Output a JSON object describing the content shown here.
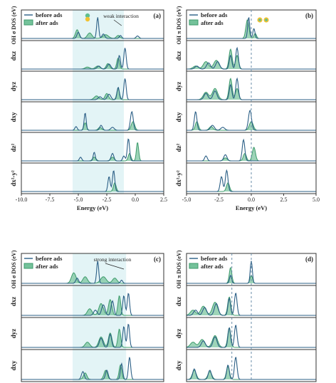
{
  "colors": {
    "before": "#2b5f86",
    "after": "#3e9b6c",
    "after_fill": "#74c29a",
    "shade": "#e3f4f6",
    "frame": "#333333",
    "dash": "#6a8ea8"
  },
  "legend": {
    "before": "before ads",
    "after": "after ads"
  },
  "panels": [
    {
      "id": "a",
      "tag": "(a)",
      "ylabel_top": "OH σ DOS (eV)",
      "annotation": "weak interaction",
      "annotation_icon": "orbital-icon",
      "xaxis": {
        "min": -10,
        "max": 2.5,
        "ticks": [
          "-10.0",
          "-7.5",
          "-5.0",
          "-2.5",
          "0.0",
          "2.5"
        ],
        "label": "Energy (eV)"
      },
      "shade": [
        -5.5,
        -1.0
      ],
      "dashed": [],
      "rows": [
        {
          "label": "",
          "before": [
            [
              -3.3,
              0.85,
              0.09
            ],
            [
              -5.0,
              0.25,
              0.12
            ],
            [
              -2.8,
              0.18,
              0.12
            ],
            [
              -1.3,
              0.12,
              0.1
            ],
            [
              0.2,
              0.1,
              0.12
            ]
          ],
          "after": [
            [
              -5.1,
              0.35,
              0.15
            ],
            [
              -4.0,
              0.22,
              0.2
            ],
            [
              -2.6,
              0.15,
              0.25
            ],
            [
              -1.5,
              0.12,
              0.15
            ]
          ]
        },
        {
          "label": "dxz",
          "before": [
            [
              -0.9,
              0.85,
              0.1
            ],
            [
              -1.4,
              0.55,
              0.1
            ],
            [
              -2.3,
              0.2,
              0.15
            ],
            [
              -3.2,
              0.12,
              0.15
            ]
          ],
          "after": [
            [
              -1.5,
              0.45,
              0.12
            ],
            [
              -2.4,
              0.22,
              0.15
            ],
            [
              -3.3,
              0.12,
              0.2
            ],
            [
              -4.2,
              0.08,
              0.2
            ]
          ]
        },
        {
          "label": "dyz",
          "before": [
            [
              -0.9,
              0.85,
              0.1
            ],
            [
              -1.5,
              0.5,
              0.1
            ],
            [
              -2.3,
              0.22,
              0.15
            ],
            [
              -3.1,
              0.12,
              0.15
            ]
          ],
          "after": [
            [
              -1.5,
              0.45,
              0.12
            ],
            [
              -2.5,
              0.25,
              0.15
            ],
            [
              -3.4,
              0.15,
              0.2
            ]
          ]
        },
        {
          "label": "dxy",
          "before": [
            [
              -4.4,
              0.7,
              0.09
            ],
            [
              -3.0,
              0.2,
              0.12
            ],
            [
              -0.3,
              0.75,
              0.12
            ],
            [
              -5.2,
              0.15,
              0.1
            ],
            [
              -2.0,
              0.12,
              0.15
            ]
          ],
          "after": [
            [
              -4.4,
              0.3,
              0.12
            ],
            [
              -0.2,
              0.35,
              0.15
            ],
            [
              -3.1,
              0.12,
              0.15
            ]
          ]
        },
        {
          "label": "dz²",
          "before": [
            [
              -0.6,
              0.9,
              0.1
            ],
            [
              -2.0,
              0.3,
              0.12
            ],
            [
              -3.6,
              0.35,
              0.09
            ],
            [
              -4.8,
              0.15,
              0.1
            ],
            [
              -1.0,
              0.2,
              0.1
            ]
          ],
          "after": [
            [
              0.2,
              0.75,
              0.1
            ],
            [
              -0.5,
              0.3,
              0.12
            ],
            [
              -2.0,
              0.15,
              0.15
            ],
            [
              -3.6,
              0.15,
              0.15
            ]
          ]
        },
        {
          "label": "dx²-y²",
          "before": [
            [
              -1.9,
              0.85,
              0.1
            ],
            [
              -2.3,
              0.6,
              0.1
            ]
          ],
          "after": [
            [
              -1.8,
              0.35,
              0.12
            ]
          ]
        }
      ]
    },
    {
      "id": "b",
      "tag": "(b)",
      "ylabel_top": "OH π DOS (eV)",
      "annotation": "",
      "annotation_icon": "orbital-pair-icon",
      "xaxis": {
        "min": -5,
        "max": 5,
        "ticks": [
          "-5.0",
          "-2.5",
          "0.0",
          "2.5",
          "5.0"
        ],
        "label": "Energy (eV)"
      },
      "shade": [],
      "dashed": [
        0.0
      ],
      "rows": [
        {
          "label": "",
          "before": [
            [
              -0.2,
              0.85,
              0.08
            ],
            [
              0.2,
              0.4,
              0.08
            ]
          ],
          "after": [
            [
              -0.3,
              0.75,
              0.12
            ],
            [
              0.3,
              0.2,
              0.1
            ]
          ]
        },
        {
          "label": "dxz",
          "before": [
            [
              -1.1,
              0.85,
              0.1
            ],
            [
              -1.6,
              0.55,
              0.1
            ],
            [
              -2.6,
              0.3,
              0.15
            ],
            [
              -3.3,
              0.25,
              0.15
            ],
            [
              -4.2,
              0.12,
              0.15
            ]
          ],
          "after": [
            [
              -1.6,
              0.8,
              0.12
            ],
            [
              -1.1,
              0.55,
              0.12
            ],
            [
              -2.7,
              0.35,
              0.2
            ],
            [
              -3.5,
              0.3,
              0.2
            ],
            [
              -4.3,
              0.12,
              0.2
            ]
          ]
        },
        {
          "label": "dyz",
          "before": [
            [
              -1.1,
              0.85,
              0.1
            ],
            [
              -1.6,
              0.6,
              0.1
            ],
            [
              -2.8,
              0.35,
              0.15
            ],
            [
              -3.5,
              0.25,
              0.15
            ]
          ],
          "after": [
            [
              -1.6,
              0.85,
              0.12
            ],
            [
              -1.1,
              0.45,
              0.12
            ],
            [
              -2.8,
              0.45,
              0.2
            ],
            [
              -3.5,
              0.3,
              0.2
            ]
          ]
        },
        {
          "label": "dxy",
          "before": [
            [
              -4.3,
              0.75,
              0.1
            ],
            [
              -3.0,
              0.2,
              0.15
            ],
            [
              -0.1,
              0.8,
              0.12
            ],
            [
              -2.2,
              0.12,
              0.15
            ]
          ],
          "after": [
            [
              -4.2,
              0.35,
              0.12
            ],
            [
              0.0,
              0.35,
              0.15
            ],
            [
              -3.1,
              0.15,
              0.15
            ]
          ]
        },
        {
          "label": "dz²",
          "before": [
            [
              -0.6,
              0.85,
              0.1
            ],
            [
              -2.0,
              0.25,
              0.12
            ],
            [
              -3.5,
              0.2,
              0.1
            ]
          ],
          "after": [
            [
              0.2,
              0.55,
              0.12
            ],
            [
              -0.5,
              0.3,
              0.12
            ],
            [
              -2.0,
              0.12,
              0.15
            ]
          ]
        },
        {
          "label": "dx²-y²",
          "before": [
            [
              -1.9,
              0.85,
              0.1
            ],
            [
              -2.3,
              0.6,
              0.1
            ]
          ],
          "after": [
            [
              -1.8,
              0.35,
              0.12
            ]
          ]
        }
      ]
    },
    {
      "id": "c",
      "tag": "(c)",
      "ylabel_top": "OH σ DOS (eV)",
      "annotation": "strong interaction",
      "annotation_icon": "",
      "xaxis": {
        "min": -10,
        "max": 2.5,
        "ticks": [],
        "label": ""
      },
      "shade": [
        -5.5,
        -0.8
      ],
      "dashed": [],
      "rows": [
        {
          "label": "",
          "before": [
            [
              -3.3,
              0.85,
              0.09
            ],
            [
              -5.1,
              0.2,
              0.12
            ],
            [
              -1.2,
              0.12,
              0.1
            ]
          ],
          "after": [
            [
              -5.4,
              0.4,
              0.2
            ],
            [
              -4.4,
              0.25,
              0.2
            ],
            [
              -2.8,
              0.25,
              0.25
            ],
            [
              -1.8,
              0.2,
              0.2
            ]
          ]
        },
        {
          "label": "dxz",
          "before": [
            [
              -0.6,
              0.85,
              0.1
            ],
            [
              -1.0,
              0.75,
              0.1
            ],
            [
              -2.0,
              0.55,
              0.12
            ],
            [
              -2.8,
              0.4,
              0.15
            ],
            [
              -3.5,
              0.2,
              0.15
            ]
          ],
          "after": [
            [
              -1.4,
              0.75,
              0.12
            ],
            [
              -2.2,
              0.6,
              0.15
            ],
            [
              -3.0,
              0.45,
              0.2
            ],
            [
              -4.0,
              0.25,
              0.2
            ]
          ]
        },
        {
          "label": "dyz",
          "before": [
            [
              -0.6,
              0.9,
              0.1
            ],
            [
              -1.0,
              0.8,
              0.1
            ],
            [
              -2.2,
              0.5,
              0.12
            ],
            [
              -3.0,
              0.35,
              0.15
            ]
          ],
          "after": [
            [
              -1.4,
              0.7,
              0.12
            ],
            [
              -2.2,
              0.55,
              0.15
            ],
            [
              -3.0,
              0.4,
              0.2
            ],
            [
              -4.2,
              0.2,
              0.2
            ]
          ]
        },
        {
          "label": "dxy",
          "before": [
            [
              -0.5,
              0.85,
              0.1
            ],
            [
              -1.2,
              0.6,
              0.1
            ],
            [
              -2.5,
              0.35,
              0.12
            ],
            [
              -4.6,
              0.3,
              0.12
            ]
          ],
          "after": [
            [
              -1.3,
              0.55,
              0.12
            ],
            [
              -2.6,
              0.35,
              0.15
            ],
            [
              -4.4,
              0.25,
              0.15
            ]
          ]
        }
      ]
    },
    {
      "id": "d",
      "tag": "(d)",
      "ylabel_top": "OH π DOS (eV)",
      "annotation": "",
      "annotation_icon": "",
      "xaxis": {
        "min": -5,
        "max": 5,
        "ticks": [],
        "label": ""
      },
      "shade": [],
      "dashed": [
        -1.5,
        0.0
      ],
      "rows": [
        {
          "label": "",
          "before": [
            [
              0.0,
              0.85,
              0.08
            ],
            [
              -1.6,
              0.3,
              0.08
            ]
          ],
          "after": [
            [
              -1.6,
              0.6,
              0.1
            ],
            [
              0.0,
              0.3,
              0.1
            ]
          ]
        },
        {
          "label": "dxz",
          "before": [
            [
              -1.2,
              0.85,
              0.1
            ],
            [
              -1.7,
              0.65,
              0.1
            ],
            [
              -2.7,
              0.45,
              0.15
            ],
            [
              -3.6,
              0.3,
              0.15
            ],
            [
              -4.3,
              0.2,
              0.15
            ]
          ],
          "after": [
            [
              -1.7,
              0.7,
              0.12
            ],
            [
              -2.8,
              0.5,
              0.2
            ],
            [
              -3.7,
              0.35,
              0.2
            ],
            [
              -4.5,
              0.2,
              0.2
            ]
          ]
        },
        {
          "label": "dyz",
          "before": [
            [
              -1.2,
              0.85,
              0.1
            ],
            [
              -1.7,
              0.75,
              0.1
            ],
            [
              -2.8,
              0.4,
              0.15
            ],
            [
              -3.7,
              0.25,
              0.15
            ]
          ],
          "after": [
            [
              -1.7,
              0.75,
              0.12
            ],
            [
              -2.8,
              0.45,
              0.2
            ],
            [
              -3.8,
              0.3,
              0.2
            ],
            [
              -4.5,
              0.2,
              0.2
            ]
          ]
        },
        {
          "label": "dxy",
          "before": [
            [
              -1.2,
              0.85,
              0.1
            ],
            [
              -1.8,
              0.55,
              0.1
            ],
            [
              -3.2,
              0.35,
              0.12
            ],
            [
              -4.4,
              0.4,
              0.12
            ]
          ],
          "after": [
            [
              -1.8,
              0.5,
              0.12
            ],
            [
              -3.2,
              0.3,
              0.15
            ],
            [
              -4.4,
              0.35,
              0.15
            ]
          ]
        }
      ]
    }
  ],
  "chart_data": [
    {
      "type": "line",
      "panel": "a",
      "title": "",
      "xlabel": "Energy (eV)",
      "ylabel": "OH σ DOS (eV), dxz, dyz, dxy, dz², dx²-y²",
      "xlim": [
        -10,
        2.5
      ],
      "series": [
        {
          "name": "before ads"
        },
        {
          "name": "after ads"
        }
      ],
      "annotations": [
        "weak interaction"
      ]
    },
    {
      "type": "line",
      "panel": "b",
      "title": "",
      "xlabel": "Energy (eV)",
      "ylabel": "OH π DOS (eV), dxz, dyz, dxy, dz², dx²-y²",
      "xlim": [
        -5,
        5
      ],
      "series": [
        {
          "name": "before ads"
        },
        {
          "name": "after ads"
        }
      ]
    },
    {
      "type": "line",
      "panel": "c",
      "title": "",
      "xlabel": "",
      "ylabel": "OH σ DOS (eV), dxz, dyz, dxy",
      "xlim": [
        -10,
        2.5
      ],
      "series": [
        {
          "name": "before ads"
        },
        {
          "name": "after ads"
        }
      ],
      "annotations": [
        "strong interaction"
      ]
    },
    {
      "type": "line",
      "panel": "d",
      "title": "",
      "xlabel": "",
      "ylabel": "OH π DOS (eV), dxz, dyz, dxy",
      "xlim": [
        -5,
        5
      ],
      "series": [
        {
          "name": "before ads"
        },
        {
          "name": "after ads"
        }
      ]
    }
  ]
}
